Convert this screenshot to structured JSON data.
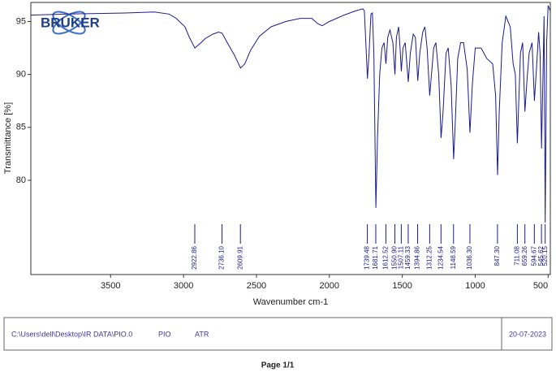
{
  "logo": "BRUKER",
  "chart_data": {
    "type": "line",
    "x_label": "Wavenumber cm-1",
    "y_label": "Transmittance [%]",
    "xlim": [
      4047,
      485
    ],
    "xticks": [
      3500,
      3000,
      2500,
      2000,
      1500,
      1000,
      500
    ],
    "ylim": [
      71.1,
      96.8
    ],
    "yticks": [
      80,
      85,
      90,
      95
    ],
    "series": [
      {
        "color": "#1b1b8e",
        "x": [
          4047,
          3800,
          3400,
          3200,
          3100,
          3050,
          2990,
          2960,
          2922,
          2880,
          2850,
          2800,
          2760,
          2736,
          2700,
          2650,
          2609,
          2580,
          2540,
          2480,
          2400,
          2300,
          2200,
          2120,
          2080,
          2050,
          2000,
          1900,
          1820,
          1770,
          1760,
          1750,
          1739,
          1728,
          1715,
          1705,
          1695,
          1681,
          1670,
          1655,
          1640,
          1625,
          1612,
          1600,
          1585,
          1565,
          1550,
          1540,
          1525,
          1515,
          1507,
          1495,
          1480,
          1459,
          1445,
          1425,
          1410,
          1394,
          1380,
          1360,
          1345,
          1330,
          1312,
          1300,
          1285,
          1270,
          1250,
          1234,
          1220,
          1200,
          1185,
          1165,
          1148,
          1135,
          1120,
          1100,
          1080,
          1055,
          1036,
          1020,
          1000,
          960,
          920,
          880,
          860,
          847,
          835,
          815,
          790,
          760,
          740,
          725,
          711,
          700,
          690,
          675,
          659,
          645,
          630,
          610,
          594,
          580,
          565,
          555,
          545,
          535,
          528,
          520,
          510,
          500,
          485
        ],
        "values": [
          95.6,
          95.7,
          95.8,
          95.9,
          95.7,
          95.3,
          94.5,
          93.5,
          92.5,
          93.0,
          93.4,
          93.8,
          94.0,
          93.9,
          93.0,
          91.8,
          90.6,
          91.0,
          92.3,
          93.6,
          94.5,
          95.0,
          95.3,
          95.3,
          94.8,
          94.6,
          95.0,
          95.6,
          96.0,
          96.2,
          96.0,
          93.0,
          89.6,
          92.0,
          95.7,
          95.8,
          92.0,
          77.4,
          84.0,
          90.0,
          92.5,
          93.0,
          91.0,
          93.5,
          94.2,
          93.0,
          90.0,
          93.5,
          94.5,
          92.5,
          90.3,
          92.5,
          93.0,
          89.3,
          92.0,
          93.8,
          93.5,
          89.4,
          92.0,
          94.0,
          94.5,
          92.5,
          88.0,
          90.0,
          92.5,
          93.0,
          90.0,
          84.0,
          86.5,
          92.0,
          92.5,
          89.0,
          82.0,
          86.0,
          91.5,
          93.0,
          93.0,
          90.5,
          84.5,
          89.0,
          92.5,
          92.5,
          91.5,
          91.0,
          88.0,
          80.5,
          86.5,
          93.0,
          95.5,
          94.5,
          91.0,
          90.0,
          83.5,
          88.0,
          92.0,
          93.0,
          86.5,
          89.5,
          92.0,
          93.0,
          87.5,
          90.5,
          94.0,
          92.0,
          83.0,
          90.0,
          95.5,
          76.0,
          93.0,
          96.5,
          96.0
        ]
      }
    ],
    "peaks": {
      "x": [
        2922.86,
        2736.1,
        2609.91,
        1739.48,
        1681.71,
        1612.52,
        1550.9,
        1507.11,
        1459.33,
        1394.86,
        1312.25,
        1234.54,
        1148.59,
        1036.3,
        847.3,
        711.08,
        659.26,
        594.67,
        545.62,
        520.15
      ],
      "labels": [
        "2922.86",
        "2736.10",
        "2609.91",
        "1739.48",
        "1681.71",
        "1612.52",
        "1550.90",
        "1507.11",
        "1459.33",
        "1394.86",
        "1312.25",
        "1234.54",
        "1148.59",
        "1036.30",
        "847.30",
        "711.08",
        "659.26",
        "594.67",
        "545.62",
        "520.15"
      ]
    }
  },
  "footer": {
    "path": "C:\\Users\\dell\\Desktop\\IR DATA\\PIO.0",
    "sample": "PIO",
    "method": "ATR",
    "date": "20-07-2023",
    "page": "Page 1/1"
  }
}
